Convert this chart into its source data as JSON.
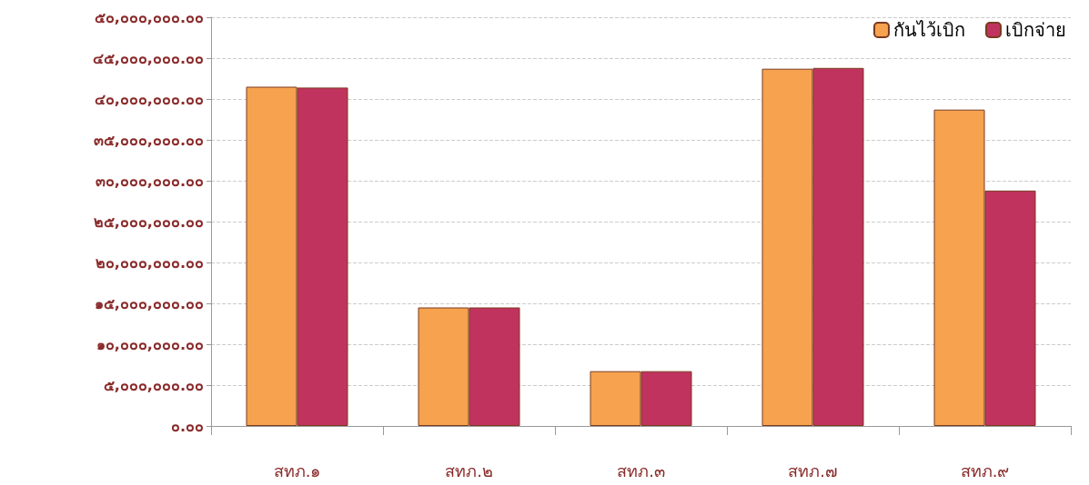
{
  "chart_data": {
    "type": "bar",
    "categories": [
      "สทภ.๑",
      "สทภ.๒",
      "สทภ.๓",
      "สทภ.๗",
      "สทภ.๙"
    ],
    "series": [
      {
        "name": "กันไว้เบิก",
        "color": "#f6a24e",
        "values": [
          41500000,
          14500000,
          6700000,
          43700000,
          38700000
        ]
      },
      {
        "name": "เบิกจ่าย",
        "color": "#c0335f",
        "values": [
          41400000,
          14500000,
          6700000,
          43800000,
          28800000
        ]
      }
    ],
    "ylim": [
      0,
      50000000
    ],
    "yticks": [
      {
        "value": 0,
        "label": "๐.๐๐"
      },
      {
        "value": 5000000,
        "label": "๕,๐๐๐,๐๐๐.๐๐"
      },
      {
        "value": 10000000,
        "label": "๑๐,๐๐๐,๐๐๐.๐๐"
      },
      {
        "value": 15000000,
        "label": "๑๕,๐๐๐,๐๐๐.๐๐"
      },
      {
        "value": 20000000,
        "label": "๒๐,๐๐๐,๐๐๐.๐๐"
      },
      {
        "value": 25000000,
        "label": "๒๕,๐๐๐,๐๐๐.๐๐"
      },
      {
        "value": 30000000,
        "label": "๓๐,๐๐๐,๐๐๐.๐๐"
      },
      {
        "value": 35000000,
        "label": "๓๕,๐๐๐,๐๐๐.๐๐"
      },
      {
        "value": 40000000,
        "label": "๔๐,๐๐๐,๐๐๐.๐๐"
      },
      {
        "value": 45000000,
        "label": "๔๕,๐๐๐,๐๐๐.๐๐"
      },
      {
        "value": 50000000,
        "label": "๕๐,๐๐๐,๐๐๐.๐๐"
      }
    ],
    "grid": "y",
    "legend": "top right"
  }
}
